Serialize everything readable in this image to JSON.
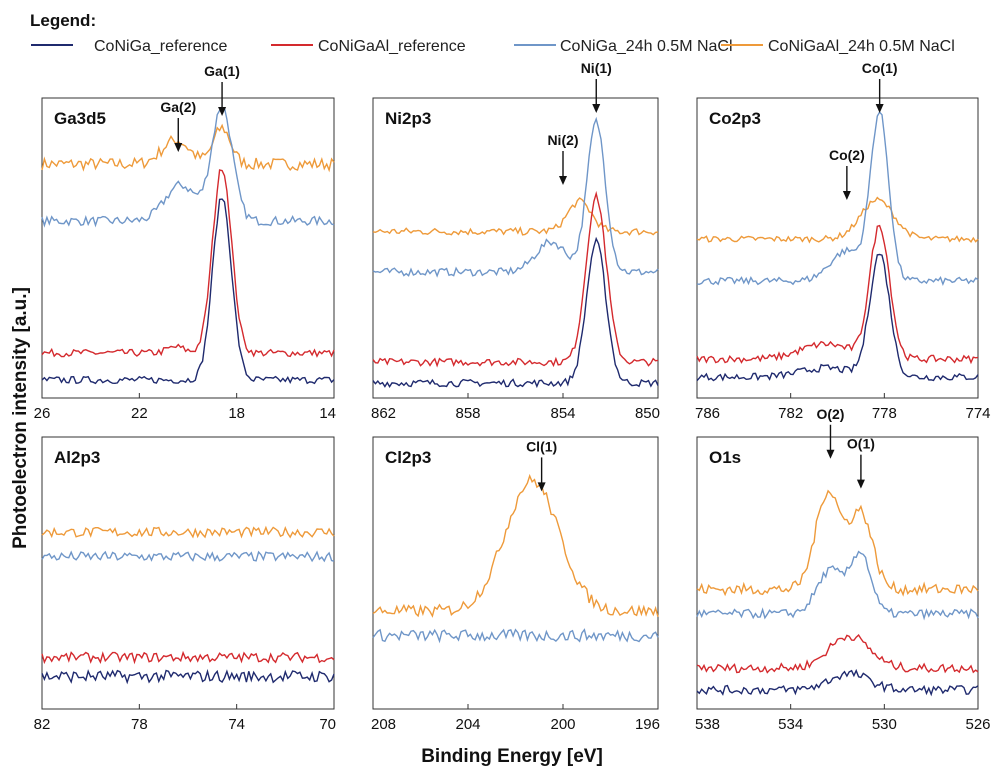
{
  "colors": {
    "CoNiGa_reference": "#1f2a6e",
    "CoNiGaAl_reference": "#d42a2e",
    "CoNiGa_24h": "#6f96c8",
    "CoNiGaAl_24h": "#ee9a3a"
  },
  "legend": {
    "title": "Legend:",
    "placement": "top",
    "entries": [
      {
        "key": "CoNiGa_reference",
        "label": "CoNiGa_reference"
      },
      {
        "key": "CoNiGaAl_reference",
        "label": "CoNiGaAl_reference"
      },
      {
        "key": "CoNiGa_24h",
        "label": "CoNiGa_24h 0.5M NaCl"
      },
      {
        "key": "CoNiGaAl_24h",
        "label": "CoNiGaAl_24h 0.5M NaCl"
      }
    ]
  },
  "xlabel": "Binding Energy [eV]",
  "ylabel": "Photoelectron intensity [a.u.]",
  "chart_data": [
    {
      "type": "line",
      "title": "Ga3d5",
      "xlim": [
        26,
        14
      ],
      "ticks": [
        "26",
        "22",
        "18",
        "14"
      ],
      "annotations": [
        {
          "label": "Ga(2)",
          "x": 20.4,
          "y": 0.82
        },
        {
          "label": "Ga(1)",
          "x": 18.6,
          "y": 0.94
        }
      ],
      "series": [
        {
          "key": "CoNiGaAl_24h",
          "base": 0.78,
          "noise": 0.02,
          "peaks": [
            [
              20.5,
              0.8,
              0.08
            ],
            [
              18.6,
              0.5,
              0.12
            ]
          ]
        },
        {
          "key": "CoNiGa_24h",
          "base": 0.59,
          "noise": 0.015,
          "peaks": [
            [
              20.3,
              0.9,
              0.12
            ],
            [
              18.6,
              0.6,
              0.38
            ]
          ]
        },
        {
          "key": "CoNiGaAl_reference",
          "base": 0.15,
          "noise": 0.012,
          "peaks": [
            [
              18.6,
              0.55,
              0.62
            ],
            [
              20.5,
              0.5,
              0.02
            ]
          ]
        },
        {
          "key": "CoNiGa_reference",
          "base": 0.06,
          "noise": 0.012,
          "peaks": [
            [
              18.6,
              0.55,
              0.61
            ]
          ]
        }
      ]
    },
    {
      "type": "line",
      "title": "Ni2p3",
      "xlim": [
        862,
        850
      ],
      "ticks": [
        "862",
        "858",
        "854",
        "850"
      ],
      "annotations": [
        {
          "label": "Ni(2)",
          "x": 854.0,
          "y": 0.71
        },
        {
          "label": "Ni(1)",
          "x": 852.6,
          "y": 0.95
        }
      ],
      "series": [
        {
          "key": "CoNiGaAl_24h",
          "base": 0.555,
          "noise": 0.012,
          "peaks": [
            [
              853.3,
              0.7,
              0.1
            ]
          ]
        },
        {
          "key": "CoNiGa_24h",
          "base": 0.42,
          "noise": 0.013,
          "peaks": [
            [
              852.6,
              0.55,
              0.5
            ],
            [
              854.5,
              0.9,
              0.1
            ]
          ]
        },
        {
          "key": "CoNiGaAl_reference",
          "base": 0.12,
          "noise": 0.012,
          "peaks": [
            [
              852.6,
              0.6,
              0.55
            ]
          ]
        },
        {
          "key": "CoNiGa_reference",
          "base": 0.05,
          "noise": 0.012,
          "peaks": [
            [
              852.6,
              0.58,
              0.47
            ]
          ]
        }
      ]
    },
    {
      "type": "line",
      "title": "Co2p3",
      "xlim": [
        786,
        774
      ],
      "ticks": [
        "786",
        "782",
        "778",
        "774"
      ],
      "annotations": [
        {
          "label": "Co(2)",
          "x": 779.6,
          "y": 0.66
        },
        {
          "label": "Co(1)",
          "x": 778.2,
          "y": 0.95
        }
      ],
      "series": [
        {
          "key": "CoNiGaAl_24h",
          "base": 0.53,
          "noise": 0.01,
          "peaks": [
            [
              778.3,
              1.0,
              0.13
            ]
          ]
        },
        {
          "key": "CoNiGa_24h",
          "base": 0.39,
          "noise": 0.012,
          "peaks": [
            [
              778.2,
              0.55,
              0.55
            ],
            [
              779.6,
              1.0,
              0.1
            ]
          ]
        },
        {
          "key": "CoNiGaAl_reference",
          "base": 0.13,
          "noise": 0.012,
          "peaks": [
            [
              778.2,
              0.6,
              0.44
            ],
            [
              780.5,
              1.5,
              0.05
            ]
          ]
        },
        {
          "key": "CoNiGa_reference",
          "base": 0.07,
          "noise": 0.012,
          "peaks": [
            [
              778.2,
              0.6,
              0.41
            ],
            [
              780.5,
              1.5,
              0.03
            ]
          ]
        }
      ]
    },
    {
      "type": "line",
      "title": "Al2p3",
      "xlim": [
        82,
        70
      ],
      "ticks": [
        "82",
        "78",
        "74",
        "70"
      ],
      "annotations": [],
      "series": [
        {
          "key": "CoNiGaAl_24h",
          "base": 0.65,
          "noise": 0.018,
          "peaks": []
        },
        {
          "key": "CoNiGa_24h",
          "base": 0.56,
          "noise": 0.018,
          "peaks": []
        },
        {
          "key": "CoNiGaAl_reference",
          "base": 0.19,
          "noise": 0.018,
          "peaks": []
        },
        {
          "key": "CoNiGa_reference",
          "base": 0.12,
          "noise": 0.022,
          "peaks": []
        }
      ]
    },
    {
      "type": "line",
      "title": "Cl2p3",
      "xlim": [
        208,
        196
      ],
      "ticks": [
        "208",
        "204",
        "200",
        "196"
      ],
      "annotations": [
        {
          "label": "Cl(1)",
          "x": 200.9,
          "y": 0.8
        }
      ],
      "series": [
        {
          "key": "CoNiGaAl_24h",
          "base": 0.36,
          "noise": 0.022,
          "peaks": [
            [
              201.3,
              1.6,
              0.48
            ]
          ]
        },
        {
          "key": "CoNiGa_24h",
          "base": 0.27,
          "noise": 0.022,
          "peaks": []
        }
      ]
    },
    {
      "type": "line",
      "title": "O1s",
      "xlim": [
        538,
        526
      ],
      "ticks": [
        "538",
        "534",
        "530",
        "526"
      ],
      "annotations": [
        {
          "label": "O(2)",
          "x": 532.3,
          "y": 0.92
        },
        {
          "label": "O(1)",
          "x": 531.0,
          "y": 0.81
        }
      ],
      "series": [
        {
          "key": "CoNiGaAl_24h",
          "base": 0.44,
          "noise": 0.02,
          "peaks": [
            [
              532.4,
              0.75,
              0.36
            ],
            [
              531.0,
              0.7,
              0.28
            ]
          ]
        },
        {
          "key": "CoNiGa_24h",
          "base": 0.35,
          "noise": 0.016,
          "peaks": [
            [
              532.3,
              0.8,
              0.16
            ],
            [
              531.0,
              0.6,
              0.22
            ]
          ]
        },
        {
          "key": "CoNiGaAl_reference",
          "base": 0.15,
          "noise": 0.016,
          "peaks": [
            [
              531.5,
              1.2,
              0.12
            ]
          ]
        },
        {
          "key": "CoNiGa_reference",
          "base": 0.07,
          "noise": 0.016,
          "peaks": [
            [
              531.5,
              1.2,
              0.06
            ]
          ]
        }
      ]
    }
  ]
}
